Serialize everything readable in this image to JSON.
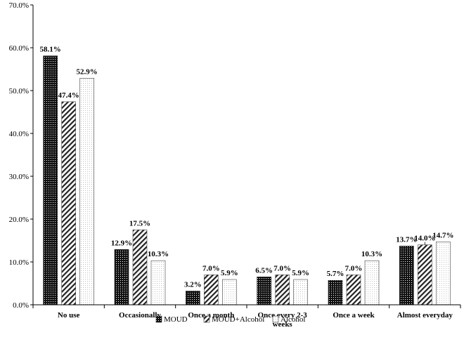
{
  "chart_data": {
    "type": "bar",
    "categories": [
      [
        "No use"
      ],
      [
        "Occasionally"
      ],
      [
        "Once a month"
      ],
      [
        "Once every 2-3",
        "weeks"
      ],
      [
        "Once a week"
      ],
      [
        "Almost everyday"
      ]
    ],
    "series": [
      {
        "name": "MOUD",
        "pattern": "dense-checker",
        "values": [
          58.1,
          12.9,
          3.2,
          6.5,
          5.7,
          13.7
        ],
        "labels": [
          "58.1%",
          "12.9%",
          "3.2%",
          "6.5%",
          "5.7%",
          "13.7%"
        ]
      },
      {
        "name": "MOUD+Alcohol",
        "pattern": "diagonal-stripes",
        "values": [
          47.4,
          17.5,
          7.0,
          7.0,
          7.0,
          14.0
        ],
        "labels": [
          "47.4%",
          "17.5%",
          "7.0%",
          "7.0%",
          "7.0%",
          "14.0%"
        ]
      },
      {
        "name": "Alcohol",
        "pattern": "light-dots",
        "values": [
          52.9,
          10.3,
          5.9,
          5.9,
          10.3,
          14.7
        ],
        "labels": [
          "52.9%",
          "10.3%",
          "5.9%",
          "5.9%",
          "10.3%",
          "14.7%"
        ]
      }
    ],
    "yticks": [
      "0.0%",
      "10.0%",
      "20.0%",
      "30.0%",
      "40.0%",
      "50.0%",
      "60.0%",
      "70.0%"
    ],
    "ylim": [
      0,
      70
    ],
    "title": "",
    "xlabel": "",
    "ylabel": "",
    "grid": false,
    "legend_position": "bottom",
    "colors": {
      "axis": "#000000",
      "dark": "#111111",
      "stripe": "#222222",
      "dot": "#9a9a9a"
    }
  }
}
